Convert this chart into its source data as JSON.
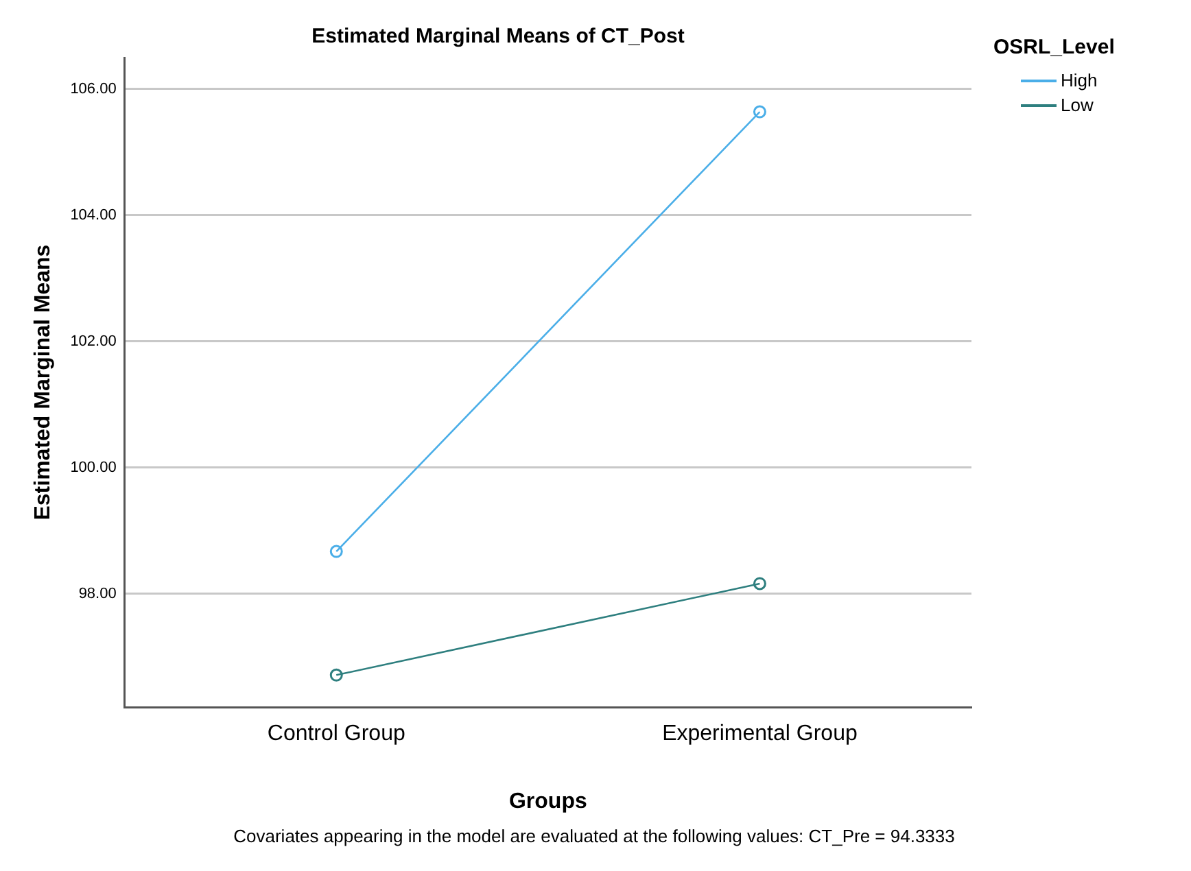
{
  "chart_data": {
    "type": "line",
    "title": "Estimated Marginal Means of CT_Post",
    "xlabel": "Groups",
    "ylabel": "Estimated Marginal Means",
    "legend_title": "OSRL_Level",
    "categories": [
      "Control Group",
      "Experimental Group"
    ],
    "series": [
      {
        "name": "High",
        "color": "#4aaee8",
        "values": [
          98.67,
          105.64
        ]
      },
      {
        "name": "Low",
        "color": "#2e7f7f",
        "values": [
          96.71,
          98.16
        ]
      }
    ],
    "ylim": [
      96.2,
      106.5
    ],
    "yticks": [
      {
        "value": 98,
        "label": "98.00"
      },
      {
        "value": 100,
        "label": "100.00"
      },
      {
        "value": 102,
        "label": "102.00"
      },
      {
        "value": 104,
        "label": "104.00"
      },
      {
        "value": 106,
        "label": "106.00"
      }
    ],
    "grid": "y",
    "legend": "right",
    "marker": "circle",
    "line_style": "solid",
    "annotations": [
      "Covariates appearing in the model are evaluated at the following values: CT_Pre = 94.3333"
    ]
  }
}
